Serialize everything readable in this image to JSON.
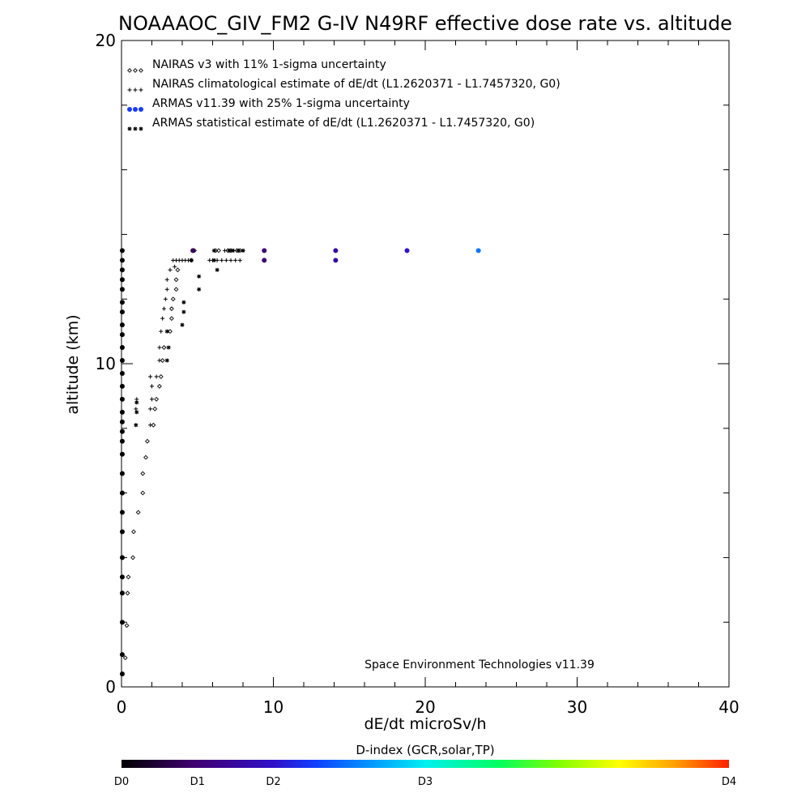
{
  "chart_data": {
    "type": "scatter",
    "title": "NOAAAOC_GIV_FM2 G-IV   N49RF  effective dose rate vs. altitude",
    "xlabel": "dE/dt microSv/h",
    "ylabel": "altitude (km)",
    "xlim": [
      0,
      40
    ],
    "ylim": [
      0,
      20
    ],
    "x_ticks": [
      "0",
      "10",
      "20",
      "30",
      "40"
    ],
    "y_ticks": [
      "0",
      "10",
      "20"
    ],
    "grid": false,
    "legend_position": "top-left",
    "credit": "Space Environment Technologies v11.39",
    "colorbar": {
      "title": "D-index (GCR,solar,TP)",
      "labels": [
        {
          "text": "D0",
          "value": 0
        },
        {
          "text": "D1",
          "value": 1
        },
        {
          "text": "D2",
          "value": 2
        },
        {
          "text": "D3",
          "value": 3
        },
        {
          "text": "D4",
          "value": 4
        }
      ]
    },
    "series": [
      {
        "name": "NAIRAS v3 with 11% 1-sigma uncertainty",
        "marker": "diamond",
        "points": [
          [
            0.25,
            0.9
          ],
          [
            0.35,
            1.9
          ],
          [
            0.4,
            2.9
          ],
          [
            0.45,
            3.4
          ],
          [
            0.75,
            4.0
          ],
          [
            0.8,
            4.8
          ],
          [
            1.1,
            5.4
          ],
          [
            1.4,
            6.0
          ],
          [
            1.4,
            6.6
          ],
          [
            1.6,
            7.1
          ],
          [
            1.7,
            7.6
          ],
          [
            2.1,
            8.1
          ],
          [
            2.2,
            8.6
          ],
          [
            2.3,
            8.9
          ],
          [
            2.5,
            9.3
          ],
          [
            2.6,
            9.6
          ],
          [
            2.7,
            10.1
          ],
          [
            2.8,
            10.5
          ],
          [
            3.2,
            11.0
          ],
          [
            3.3,
            11.4
          ],
          [
            3.3,
            11.7
          ],
          [
            3.4,
            12.0
          ],
          [
            3.6,
            12.3
          ],
          [
            3.6,
            12.6
          ],
          [
            3.7,
            12.9
          ],
          [
            4.6,
            13.2
          ],
          [
            4.8,
            13.5
          ],
          [
            6.2,
            13.5
          ],
          [
            6.4,
            13.5
          ],
          [
            7.0,
            13.5
          ],
          [
            7.2,
            13.5
          ],
          [
            7.6,
            13.5
          ],
          [
            7.8,
            13.5
          ]
        ]
      },
      {
        "name": "NAIRAS climatological estimate of dE/dt (L1.2620371 - L1.7457320, G0)",
        "marker": "plus",
        "points": [
          [
            0.95,
            8.6
          ],
          [
            1.0,
            8.9
          ],
          [
            1.9,
            8.1
          ],
          [
            1.9,
            8.6
          ],
          [
            2.0,
            8.9
          ],
          [
            2.0,
            9.3
          ],
          [
            1.9,
            9.6
          ],
          [
            2.3,
            9.6
          ],
          [
            2.5,
            10.1
          ],
          [
            2.5,
            10.5
          ],
          [
            2.6,
            11.0
          ],
          [
            2.7,
            11.4
          ],
          [
            2.8,
            11.7
          ],
          [
            2.9,
            12.0
          ],
          [
            3.0,
            12.3
          ],
          [
            3.0,
            12.6
          ],
          [
            3.2,
            12.9
          ],
          [
            3.5,
            13.0
          ],
          [
            3.4,
            13.2
          ],
          [
            3.6,
            13.2
          ],
          [
            3.8,
            13.2
          ],
          [
            4.0,
            13.2
          ],
          [
            4.2,
            13.2
          ],
          [
            4.4,
            13.2
          ],
          [
            5.8,
            13.2
          ],
          [
            6.0,
            13.2
          ],
          [
            6.3,
            13.2
          ],
          [
            6.6,
            13.2
          ],
          [
            6.9,
            13.2
          ],
          [
            7.2,
            13.2
          ],
          [
            7.5,
            13.2
          ],
          [
            7.8,
            13.2
          ],
          [
            6.8,
            13.5
          ],
          [
            7.1,
            13.5
          ],
          [
            7.4,
            13.5
          ],
          [
            7.7,
            13.5
          ],
          [
            8.0,
            13.5
          ]
        ]
      },
      {
        "name": "ARMAS v11.39 with 25% 1-sigma uncertainty",
        "marker": "dot",
        "points": [
          {
            "x": 0.05,
            "y": 0.4,
            "d": 0.0
          },
          {
            "x": 0.05,
            "y": 1.0,
            "d": 0.0
          },
          {
            "x": 0.05,
            "y": 2.0,
            "d": 0.0
          },
          {
            "x": 0.05,
            "y": 2.9,
            "d": 0.0
          },
          {
            "x": 0.05,
            "y": 3.4,
            "d": 0.0
          },
          {
            "x": 0.05,
            "y": 4.0,
            "d": 0.0
          },
          {
            "x": 0.05,
            "y": 4.8,
            "d": 0.0
          },
          {
            "x": 0.05,
            "y": 5.4,
            "d": 0.0
          },
          {
            "x": 0.05,
            "y": 6.0,
            "d": 0.0
          },
          {
            "x": 0.05,
            "y": 6.6,
            "d": 0.0
          },
          {
            "x": 0.05,
            "y": 7.2,
            "d": 0.0
          },
          {
            "x": 0.05,
            "y": 7.6,
            "d": 0.0
          },
          {
            "x": 0.05,
            "y": 7.9,
            "d": 0.0
          },
          {
            "x": 0.05,
            "y": 8.2,
            "d": 0.0
          },
          {
            "x": 0.05,
            "y": 8.5,
            "d": 0.0
          },
          {
            "x": 0.05,
            "y": 8.9,
            "d": 0.0
          },
          {
            "x": 0.05,
            "y": 9.3,
            "d": 0.0
          },
          {
            "x": 0.05,
            "y": 9.7,
            "d": 0.0
          },
          {
            "x": 0.05,
            "y": 10.1,
            "d": 0.0
          },
          {
            "x": 0.05,
            "y": 10.5,
            "d": 0.0
          },
          {
            "x": 0.05,
            "y": 10.9,
            "d": 0.0
          },
          {
            "x": 0.05,
            "y": 11.2,
            "d": 0.0
          },
          {
            "x": 0.05,
            "y": 11.6,
            "d": 0.0
          },
          {
            "x": 0.05,
            "y": 11.9,
            "d": 0.0
          },
          {
            "x": 0.05,
            "y": 12.3,
            "d": 0.0
          },
          {
            "x": 0.05,
            "y": 12.6,
            "d": 0.0
          },
          {
            "x": 0.05,
            "y": 12.9,
            "d": 0.0
          },
          {
            "x": 0.05,
            "y": 13.2,
            "d": 0.0
          },
          {
            "x": 0.05,
            "y": 13.5,
            "d": 0.0
          },
          {
            "x": 4.7,
            "y": 13.5,
            "d": 0.8
          },
          {
            "x": 9.4,
            "y": 13.5,
            "d": 1.0
          },
          {
            "x": 9.4,
            "y": 13.2,
            "d": 1.0
          },
          {
            "x": 14.1,
            "y": 13.5,
            "d": 1.6
          },
          {
            "x": 14.1,
            "y": 13.2,
            "d": 1.6
          },
          {
            "x": 18.8,
            "y": 13.5,
            "d": 2.0
          },
          {
            "x": 23.5,
            "y": 13.5,
            "d": 2.5
          }
        ]
      },
      {
        "name": "ARMAS statistical estimate of dE/dt (L1.2620371 - L1.7457320, G0)",
        "marker": "asterisk",
        "points": [
          [
            0.95,
            8.1
          ],
          [
            1.0,
            8.5
          ],
          [
            1.0,
            8.8
          ],
          [
            3.0,
            10.1
          ],
          [
            3.1,
            10.5
          ],
          [
            3.0,
            11.0
          ],
          [
            4.0,
            11.2
          ],
          [
            4.1,
            11.6
          ],
          [
            4.1,
            11.9
          ],
          [
            5.1,
            12.3
          ],
          [
            5.1,
            12.7
          ],
          [
            4.6,
            13.2
          ],
          [
            6.1,
            13.2
          ],
          [
            6.3,
            12.9
          ],
          [
            6.1,
            13.5
          ],
          [
            7.1,
            13.5
          ],
          [
            7.3,
            13.5
          ],
          [
            7.7,
            13.5
          ],
          [
            8.0,
            13.5
          ]
        ]
      }
    ]
  }
}
